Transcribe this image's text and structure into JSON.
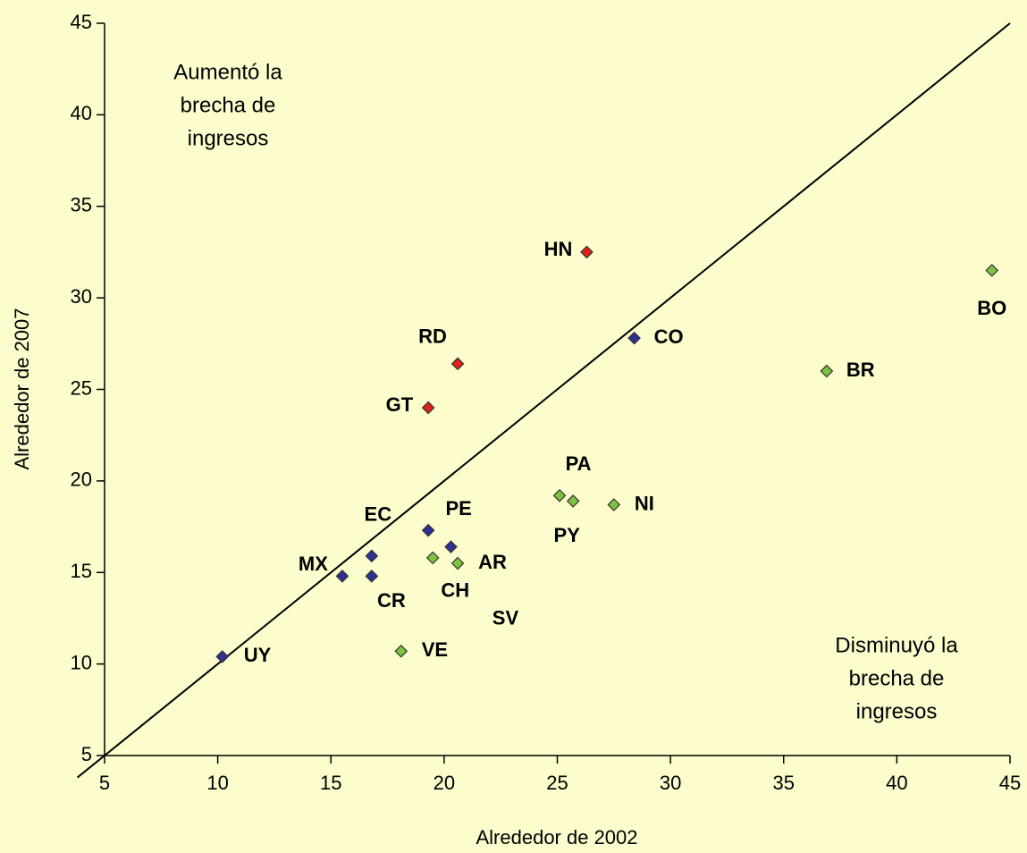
{
  "chart_data": {
    "type": "scatter",
    "xlabel": "Alrededor de 2002",
    "ylabel": "Alrededor de 2007",
    "xlim": [
      5,
      45
    ],
    "ylim": [
      5,
      45
    ],
    "xticks": [
      5,
      10,
      15,
      20,
      25,
      30,
      35,
      40,
      45
    ],
    "yticks": [
      5,
      10,
      15,
      20,
      25,
      30,
      35,
      40,
      45
    ],
    "annotations": [
      {
        "lines": [
          "Aumentó la",
          "brecha de",
          "ingresos"
        ]
      },
      {
        "lines": [
          "Disminuyó la",
          "brecha de",
          "ingresos"
        ]
      }
    ],
    "series": [
      {
        "color": "#2e3192",
        "labels": [
          "UY",
          "MX",
          "EC",
          "CR",
          "PE",
          "SV",
          "CO"
        ],
        "x": [
          10.2,
          15.5,
          16.8,
          16.8,
          19.3,
          20.3,
          28.4
        ],
        "values": [
          10.4,
          14.8,
          15.9,
          14.8,
          17.3,
          16.4,
          27.8
        ]
      },
      {
        "color": "#7dc242",
        "labels": [
          "CH",
          "AR",
          "VE",
          "PA",
          "PY",
          "NI",
          "BR",
          "BO"
        ],
        "x": [
          19.5,
          20.6,
          18.1,
          25.1,
          25.7,
          27.5,
          36.9,
          44.2
        ],
        "values": [
          15.8,
          15.5,
          10.7,
          19.2,
          18.9,
          18.7,
          26.0,
          31.5
        ]
      },
      {
        "color": "#e0201b",
        "labels": [
          "HN",
          "RD",
          "GT"
        ],
        "x": [
          26.3,
          20.6,
          19.3
        ],
        "values": [
          32.5,
          26.4,
          24.0
        ]
      }
    ]
  }
}
